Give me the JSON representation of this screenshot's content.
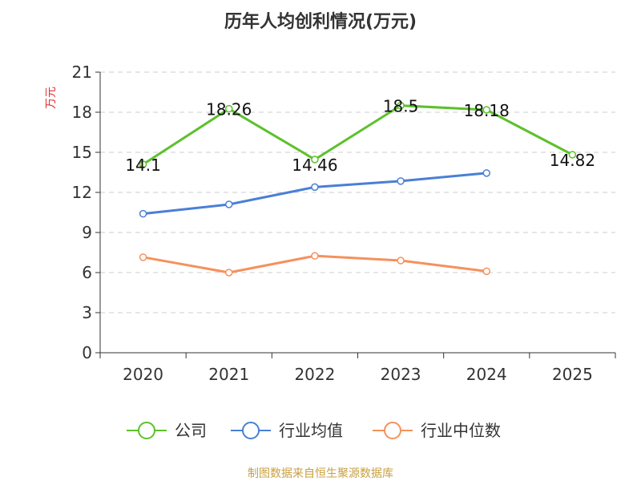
{
  "chart_data": {
    "type": "line",
    "title": "历年人均创利情况(万元)",
    "ylabel": "万元",
    "xlabel": "",
    "categories": [
      "2020",
      "2021",
      "2022",
      "2023",
      "2024",
      "2025"
    ],
    "ylim": [
      0,
      21
    ],
    "yticks": [
      0,
      3,
      6,
      9,
      12,
      15,
      18,
      21
    ],
    "grid": true,
    "legend_position": "bottom",
    "series": [
      {
        "name": "公司",
        "color": "#5cc12c",
        "values": [
          14.1,
          18.26,
          14.46,
          18.5,
          18.18,
          14.82
        ],
        "labels": [
          "14.1",
          "18.26",
          "14.46",
          "18.5",
          "18.18",
          "14.82"
        ]
      },
      {
        "name": "行业均值",
        "color": "#4a7fd6",
        "values": [
          10.4,
          11.1,
          12.4,
          12.85,
          13.45,
          null
        ]
      },
      {
        "name": "行业中位数",
        "color": "#f5915d",
        "values": [
          7.15,
          6.0,
          7.25,
          6.9,
          6.1,
          null
        ]
      }
    ]
  },
  "source_text": "制图数据来自恒生聚源数据库",
  "colors": {
    "unit_label": "#e03030",
    "source_text": "#c8a040",
    "axis": "#333333",
    "grid": "#cccccc"
  }
}
